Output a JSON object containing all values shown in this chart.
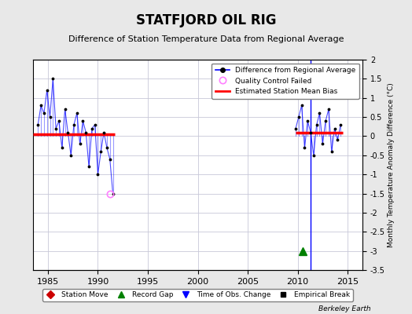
{
  "title": "STATFJORD OIL RIG",
  "subtitle": "Difference of Station Temperature Data from Regional Average",
  "ylabel_right": "Monthly Temperature Anomaly Difference (°C)",
  "credit": "Berkeley Earth",
  "ylim": [
    -3.5,
    2.0
  ],
  "xlim": [
    1983.5,
    2016.5
  ],
  "xticks": [
    1985,
    1990,
    1995,
    2000,
    2005,
    2010,
    2015
  ],
  "yticks_right": [
    -3.5,
    -3,
    -2.5,
    -2,
    -1.5,
    -1,
    -0.5,
    0,
    0.5,
    1,
    1.5,
    2
  ],
  "ytick_labels_right": [
    "-3.5",
    "-3",
    "-2.5",
    "-2",
    "-1.5",
    "-1",
    "-0.5",
    "0",
    "0.5",
    "1",
    "1.5",
    "2"
  ],
  "background_color": "#e8e8e8",
  "plot_bg_color": "#ffffff",
  "grid_color": "#c8c8d8",
  "segment1_mean": 0.05,
  "segment1_xstart": 1983.5,
  "segment1_xend": 1991.7,
  "segment2_mean": 0.1,
  "segment2_xstart": 2009.8,
  "segment2_xend": 2014.5,
  "record_gap_x": 2010.5,
  "record_gap_y": -3.0,
  "obs_change_x": 2011.3,
  "data_cluster1_x": [
    1984.0,
    1984.3,
    1984.6,
    1984.9,
    1985.2,
    1985.5,
    1985.8,
    1986.1,
    1986.4,
    1986.7,
    1987.0,
    1987.3,
    1987.6,
    1987.9,
    1988.2,
    1988.5,
    1988.8,
    1989.1,
    1989.4,
    1989.7,
    1990.0,
    1990.3,
    1990.6,
    1990.9,
    1991.2,
    1991.5
  ],
  "data_cluster1_y": [
    0.3,
    0.8,
    0.6,
    1.2,
    0.5,
    1.5,
    0.2,
    0.4,
    -0.3,
    0.7,
    0.1,
    -0.5,
    0.3,
    0.6,
    -0.2,
    0.4,
    0.1,
    -0.8,
    0.2,
    0.3,
    -1.0,
    -0.4,
    0.1,
    -0.3,
    -0.6,
    -1.5
  ],
  "data_cluster2_x": [
    2009.8,
    2010.1,
    2010.4,
    2010.7,
    2011.0,
    2011.3,
    2011.6,
    2011.9,
    2012.2,
    2012.5,
    2012.8,
    2013.1,
    2013.4,
    2013.7,
    2014.0,
    2014.3
  ],
  "data_cluster2_y": [
    0.2,
    0.5,
    0.8,
    -0.3,
    0.4,
    0.1,
    -0.5,
    0.3,
    0.6,
    -0.2,
    0.4,
    0.7,
    -0.4,
    0.2,
    -0.1,
    0.3
  ],
  "qc_failed_x": 1991.2,
  "qc_failed_y": -1.5
}
